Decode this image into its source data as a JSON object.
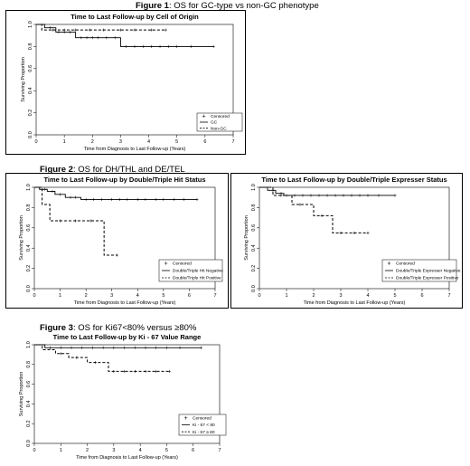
{
  "figures": [
    {
      "number_label": "Figure 1",
      "caption": ": OS for GC-type vs non-GC phenotype"
    },
    {
      "number_label": "Figure 2",
      "caption": ": OS for DH/THL and DE/TEL"
    },
    {
      "number_label": "Figure 3",
      "caption": ": OS for Ki67<80% versus ≥80%"
    }
  ],
  "chart_data": [
    {
      "type": "line",
      "title": "Time to Last Follow-up by Cell of Origin",
      "xlabel": "Time from Diagnosis to Last Follow-up (Years)",
      "ylabel": "Surviving Proportion",
      "xlim": [
        0,
        7
      ],
      "ylim": [
        0,
        1
      ],
      "x_ticks": [
        "0",
        "1",
        "2",
        "3",
        "4",
        "5",
        "6",
        "7"
      ],
      "y_ticks": [
        "0.0",
        "0.2",
        "0.4",
        "0.6",
        "0.8",
        "1.0"
      ],
      "grid": false,
      "legend_position": "bottom-right",
      "legend_items": [
        "Censored",
        "GC",
        "Non-GC"
      ],
      "series": [
        {
          "name": "GC",
          "style": "solid",
          "steps": [
            [
              0,
              1.0
            ],
            [
              0.3,
              0.97
            ],
            [
              0.7,
              0.93
            ],
            [
              1.4,
              0.88
            ],
            [
              3.0,
              0.8
            ],
            [
              6.3,
              0.8
            ]
          ],
          "censor_x": [
            0.5,
            0.8,
            1.0,
            1.2,
            1.6,
            1.8,
            2.0,
            2.2,
            2.5,
            2.8,
            3.2,
            3.5,
            3.8,
            4.1,
            4.4,
            4.7,
            5.0,
            5.5,
            6.3
          ]
        },
        {
          "name": "Non-GC",
          "style": "dashed",
          "steps": [
            [
              0,
              1.0
            ],
            [
              0.2,
              0.95
            ],
            [
              4.6,
              0.95
            ]
          ],
          "censor_x": [
            0.6,
            1.0,
            1.4,
            1.9,
            2.4,
            3.0,
            3.5,
            4.1,
            4.6
          ]
        }
      ]
    },
    {
      "type": "line",
      "title": "Time to Last Follow-up by Double/Triple Hit Status",
      "xlabel": "Time from Diagnosis to Last Follow-up (Years)",
      "ylabel": "Surviving Proportion",
      "xlim": [
        0,
        7
      ],
      "ylim": [
        0,
        1
      ],
      "x_ticks": [
        "0",
        "1",
        "2",
        "3",
        "4",
        "5",
        "6",
        "7"
      ],
      "y_ticks": [
        "0.0",
        "0.2",
        "0.4",
        "0.6",
        "0.8",
        "1.0"
      ],
      "grid": false,
      "legend_position": "bottom-right",
      "legend_items": [
        "Censored",
        "Double/Triple Hit Negative",
        "Double/Triple Hit Positive"
      ],
      "series": [
        {
          "name": "Double/Triple Hit Negative",
          "style": "solid",
          "steps": [
            [
              0,
              1.0
            ],
            [
              0.2,
              0.98
            ],
            [
              0.5,
              0.96
            ],
            [
              0.8,
              0.93
            ],
            [
              1.2,
              0.9
            ],
            [
              1.8,
              0.88
            ],
            [
              6.3,
              0.88
            ]
          ],
          "censor_x": [
            0.4,
            0.7,
            1.0,
            1.4,
            1.6,
            2.0,
            2.3,
            2.6,
            3.0,
            3.3,
            3.6,
            4.0,
            4.3,
            4.7,
            5.0,
            5.4,
            5.8,
            6.3
          ]
        },
        {
          "name": "Double/Triple Hit Positive",
          "style": "dashed",
          "steps": [
            [
              0,
              1.0
            ],
            [
              0.3,
              0.83
            ],
            [
              0.6,
              0.67
            ],
            [
              2.7,
              0.33
            ],
            [
              3.2,
              0.33
            ]
          ],
          "censor_x": [
            1.0,
            1.6,
            2.2,
            3.2
          ]
        }
      ]
    },
    {
      "type": "line",
      "title": "Time to Last Follow-up by Double/Triple Expresser Status",
      "xlabel": "Time from Diagnosis to Last Follow-up (Years)",
      "ylabel": "Surviving Proportion",
      "xlim": [
        0,
        7
      ],
      "ylim": [
        0,
        1
      ],
      "x_ticks": [
        "0",
        "1",
        "2",
        "3",
        "4",
        "5",
        "6",
        "7"
      ],
      "y_ticks": [
        "0.0",
        "0.2",
        "0.4",
        "0.6",
        "0.8",
        "1.0"
      ],
      "grid": false,
      "legend_position": "bottom-right",
      "legend_items": [
        "Censored",
        "Double/Triple Expresser Negative",
        "Double/Triple Expresser Positive"
      ],
      "series": [
        {
          "name": "Double/Triple Expresser Negative",
          "style": "solid",
          "steps": [
            [
              0,
              1.0
            ],
            [
              0.3,
              0.97
            ],
            [
              0.6,
              0.94
            ],
            [
              0.9,
              0.92
            ],
            [
              5.0,
              0.92
            ]
          ],
          "censor_x": [
            0.5,
            0.8,
            1.0,
            1.3,
            1.6,
            1.9,
            2.2,
            2.5,
            2.8,
            3.1,
            3.4,
            3.7,
            4.0,
            4.4,
            5.0
          ]
        },
        {
          "name": "Double/Triple Expresser Positive",
          "style": "dashed",
          "steps": [
            [
              0,
              1.0
            ],
            [
              0.5,
              0.92
            ],
            [
              1.2,
              0.83
            ],
            [
              2.0,
              0.72
            ],
            [
              2.7,
              0.55
            ],
            [
              4.0,
              0.55
            ]
          ],
          "censor_x": [
            0.8,
            1.5,
            2.3,
            3.0,
            3.5,
            4.0
          ]
        }
      ]
    },
    {
      "type": "line",
      "title": "Time to Last Follow-up by Ki - 67 Value Range",
      "xlabel": "Time from Diagnosis to Last Follow-up (Years)",
      "ylabel": "Surviving Proportion",
      "xlim": [
        0,
        7
      ],
      "ylim": [
        0,
        1
      ],
      "x_ticks": [
        "0",
        "1",
        "2",
        "3",
        "4",
        "5",
        "6",
        "7"
      ],
      "y_ticks": [
        "0.0",
        "0.2",
        "0.4",
        "0.6",
        "0.8",
        "1.0"
      ],
      "grid": false,
      "legend_position": "bottom-right",
      "legend_items": [
        "Censored",
        "Ki - 67 < 80",
        "Ki - 67 ≥ 80"
      ],
      "series": [
        {
          "name": "Ki - 67 < 80",
          "style": "solid",
          "steps": [
            [
              0,
              1.0
            ],
            [
              0.4,
              0.97
            ],
            [
              6.3,
              0.97
            ]
          ],
          "censor_x": [
            0.6,
            1.0,
            1.4,
            1.8,
            2.2,
            2.6,
            3.0,
            3.4,
            3.8,
            4.2,
            4.6,
            5.0,
            5.5,
            6.3
          ]
        },
        {
          "name": "Ki - 67 ≥ 80",
          "style": "dashed",
          "steps": [
            [
              0,
              1.0
            ],
            [
              0.3,
              0.95
            ],
            [
              0.8,
              0.91
            ],
            [
              1.3,
              0.87
            ],
            [
              2.0,
              0.82
            ],
            [
              2.8,
              0.73
            ],
            [
              5.1,
              0.73
            ]
          ],
          "censor_x": [
            1.0,
            1.6,
            2.3,
            3.0,
            3.4,
            3.8,
            4.2,
            4.6,
            5.1
          ]
        }
      ]
    }
  ]
}
